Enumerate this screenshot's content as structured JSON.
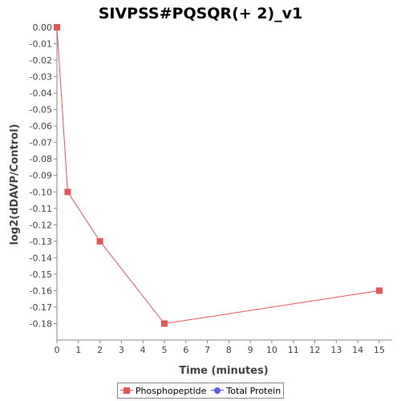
{
  "chart_data": {
    "type": "line",
    "title": "SIVPSS#PQSQR(+ 2)_v1",
    "xlabel": "Time (minutes)",
    "ylabel": "log2(dDAVP/Control)",
    "xlim": [
      0,
      15.6
    ],
    "ylim": [
      -0.19,
      0.0
    ],
    "x_ticks": [
      0,
      1,
      2,
      3,
      4,
      5,
      6,
      7,
      8,
      9,
      10,
      11,
      12,
      13,
      14,
      15
    ],
    "y_ticks": [
      0.0,
      -0.01,
      -0.02,
      -0.03,
      -0.04,
      -0.05,
      -0.06,
      -0.07,
      -0.08,
      -0.09,
      -0.1,
      -0.11,
      -0.12,
      -0.13,
      -0.14,
      -0.15,
      -0.16,
      -0.17,
      -0.18
    ],
    "grid": false,
    "legend_position": "bottom",
    "series": [
      {
        "name": "Phosphopeptide",
        "color": "#e85454",
        "marker": "square",
        "x": [
          0,
          0.5,
          2,
          5,
          15
        ],
        "y": [
          0.0,
          -0.1,
          -0.13,
          -0.18,
          -0.16
        ]
      },
      {
        "name": "Total Protein",
        "color": "#5a5aee",
        "marker": "circle",
        "x": [],
        "y": []
      }
    ]
  }
}
